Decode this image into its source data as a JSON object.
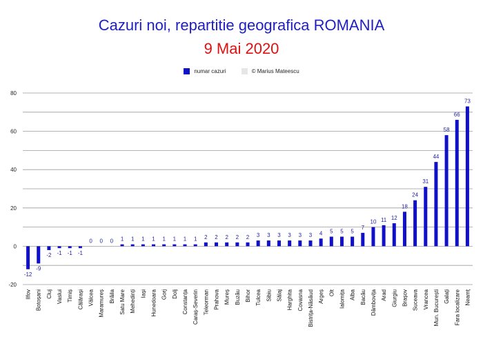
{
  "chart_data": {
    "type": "bar",
    "title": "Cazuri noi, repartitie geografica ROMANIA",
    "subtitle": "9 Mai 2020",
    "legend": [
      {
        "label": "numar cazuri",
        "color": "#1010c8"
      },
      {
        "label": "© Marius Mateescu",
        "color": "#e6e6e6"
      }
    ],
    "legend_position": "top-center",
    "grid": true,
    "ylim": [
      -20,
      80
    ],
    "yticks": [
      -20,
      0,
      20,
      40,
      60,
      80
    ],
    "categories": [
      "Ilfov",
      "Botoșani",
      "Cluj",
      "Vaslui",
      "Timiș",
      "Călărași",
      "Vâlcea",
      "Maramureș",
      "Brăila",
      "Satu Mare",
      "Mehedinți",
      "Iași",
      "Hunedoara",
      "Gorj",
      "Dolj",
      "Constanța",
      "Caraș-Severin",
      "Teleorman",
      "Prahova",
      "Mureș",
      "Buzău",
      "Bihor",
      "Tulcea",
      "Sibiu",
      "Sălaj",
      "Harghita",
      "Covasna",
      "Bistrița-Năsăud",
      "Argeș",
      "Olt",
      "Ialomița",
      "Alba",
      "Bacău",
      "Dâmbovița",
      "Arad",
      "Giurgiu",
      "Brașov",
      "Suceava",
      "Vrancea",
      "Mun. București",
      "Galați",
      "Fara localizare",
      "Neamț"
    ],
    "values": [
      -12,
      -9,
      -2,
      -1,
      -1,
      -1,
      0,
      0,
      0,
      1,
      1,
      1,
      1,
      1,
      1,
      1,
      1,
      2,
      2,
      2,
      2,
      2,
      3,
      3,
      3,
      3,
      3,
      3,
      4,
      5,
      5,
      5,
      7,
      10,
      11,
      12,
      18,
      24,
      31,
      44,
      58,
      66,
      73
    ]
  },
  "colors": {
    "bar": "#1010c8",
    "label": "#1f1fa0",
    "title": "#1f1fbf",
    "subtitle": "#e01010",
    "grid": "#9a9a9a"
  }
}
